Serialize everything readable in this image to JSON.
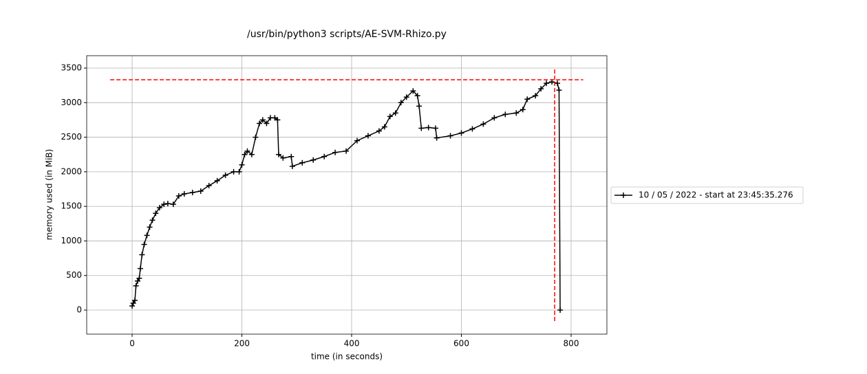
{
  "chart_data": {
    "type": "line",
    "title": "/usr/bin/python3 scripts/AE-SVM-Rhizo.py",
    "x_label": "time (in seconds)",
    "y_label": "memory used (in MiB)",
    "xlim": [
      -82.8,
      865.2
    ],
    "ylim": [
      -348,
      3679
    ],
    "xticks": [
      0,
      200,
      400,
      600,
      800
    ],
    "yticks": [
      0,
      500,
      1000,
      1500,
      2000,
      2500,
      3000,
      3500
    ],
    "grid": true,
    "legend": "right",
    "series": [
      {
        "name": "10 / 05 / 2022 - start at 23:45:35.276",
        "color": "#000000",
        "x": [
          0,
          2,
          5,
          7,
          10,
          13,
          15,
          18,
          22,
          27,
          32,
          37,
          43,
          50,
          58,
          65,
          75,
          85,
          95,
          110,
          125,
          140,
          155,
          170,
          185,
          195,
          200,
          205,
          210,
          218,
          225,
          232,
          238,
          245,
          252,
          260,
          265,
          267,
          275,
          290,
          292,
          310,
          330,
          350,
          370,
          390,
          410,
          430,
          450,
          460,
          470,
          480,
          490,
          500,
          512,
          520,
          523,
          527,
          540,
          553,
          555,
          580,
          600,
          620,
          640,
          660,
          680,
          700,
          712,
          720,
          735,
          745,
          755,
          765,
          775,
          778,
          780
        ],
        "values": [
          60,
          100,
          140,
          350,
          420,
          460,
          600,
          800,
          950,
          1080,
          1200,
          1300,
          1400,
          1480,
          1530,
          1540,
          1530,
          1650,
          1680,
          1700,
          1720,
          1800,
          1870,
          1950,
          2000,
          2000,
          2100,
          2250,
          2300,
          2250,
          2500,
          2700,
          2750,
          2700,
          2780,
          2780,
          2750,
          2250,
          2200,
          2220,
          2080,
          2130,
          2170,
          2220,
          2280,
          2300,
          2450,
          2520,
          2590,
          2650,
          2800,
          2850,
          3000,
          3080,
          3170,
          3100,
          2950,
          2630,
          2640,
          2630,
          2490,
          2520,
          2560,
          2620,
          2690,
          2780,
          2830,
          2850,
          2900,
          3050,
          3100,
          3200,
          3280,
          3300,
          3280,
          3180,
          0
        ]
      }
    ],
    "reference_lines": [
      {
        "orientation": "horizontal",
        "value": 3331,
        "from": -40,
        "to": 822,
        "color": "#ff0000"
      },
      {
        "orientation": "vertical",
        "value": 770,
        "from": -159,
        "to": 3500,
        "color": "#ff0000"
      }
    ]
  }
}
